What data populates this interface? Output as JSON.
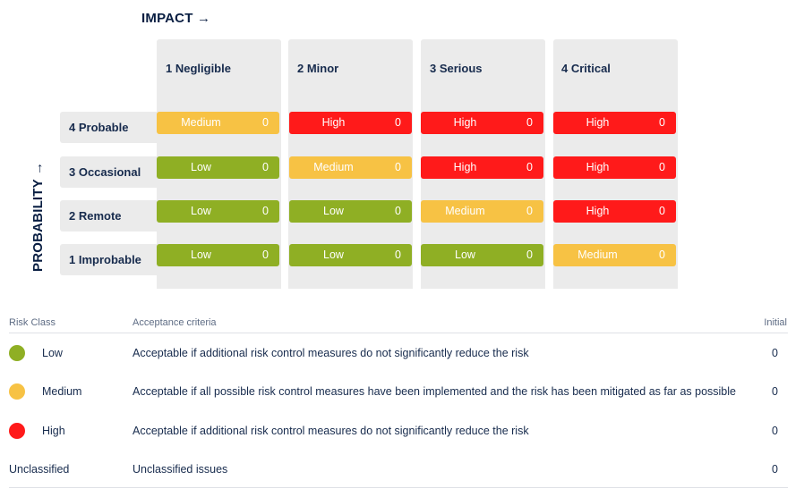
{
  "matrix": {
    "impact_title": "IMPACT →",
    "probability_title": "PROBABILITY →",
    "columns": [
      "1 Negligible",
      "2 Minor",
      "3 Serious",
      "4 Critical"
    ],
    "rows": [
      {
        "label": "4 Probable",
        "cells": [
          {
            "label": "Medium",
            "count": "0"
          },
          {
            "label": "High",
            "count": "0"
          },
          {
            "label": "High",
            "count": "0"
          },
          {
            "label": "High",
            "count": "0"
          }
        ]
      },
      {
        "label": "3 Occasional",
        "cells": [
          {
            "label": "Low",
            "count": "0"
          },
          {
            "label": "Medium",
            "count": "0"
          },
          {
            "label": "High",
            "count": "0"
          },
          {
            "label": "High",
            "count": "0"
          }
        ]
      },
      {
        "label": "2 Remote",
        "cells": [
          {
            "label": "Low",
            "count": "0"
          },
          {
            "label": "Low",
            "count": "0"
          },
          {
            "label": "Medium",
            "count": "0"
          },
          {
            "label": "High",
            "count": "0"
          }
        ]
      },
      {
        "label": "1 Improbable",
        "cells": [
          {
            "label": "Low",
            "count": "0"
          },
          {
            "label": "Low",
            "count": "0"
          },
          {
            "label": "Low",
            "count": "0"
          },
          {
            "label": "Medium",
            "count": "0"
          }
        ]
      }
    ]
  },
  "colors": {
    "low": "#8faf24",
    "medium": "#f7c244",
    "high": "#ff1a1a"
  },
  "legend": {
    "headers": {
      "risk_class": "Risk Class",
      "criteria": "Acceptance criteria",
      "initial": "Initial"
    },
    "rows": [
      {
        "name": "Low",
        "criteria": "Acceptable if additional risk control measures do not significantly reduce the risk",
        "initial": "0"
      },
      {
        "name": "Medium",
        "criteria": "Acceptable if all possible risk control measures have been implemented and the risk has been mitigated as far as possible",
        "initial": "0"
      },
      {
        "name": "High",
        "criteria": "Acceptable if additional risk control measures do not significantly reduce the risk",
        "initial": "0"
      },
      {
        "name": "Unclassified",
        "criteria": "Unclassified issues",
        "initial": "0"
      }
    ]
  }
}
